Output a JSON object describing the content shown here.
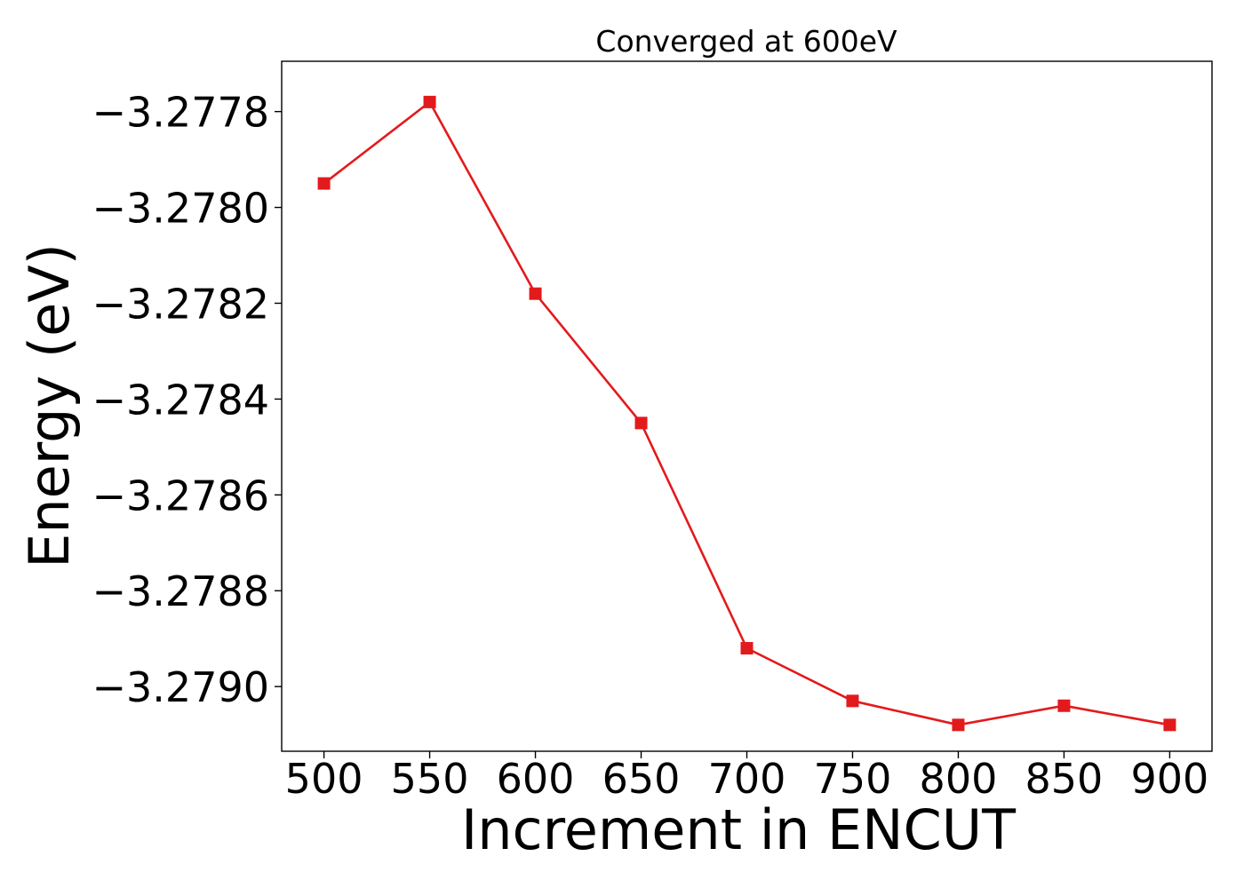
{
  "chart_data": {
    "type": "line",
    "title": "Converged at 600eV",
    "xlabel": "Increment in ENCUT",
    "ylabel": "Energy (eV)",
    "x": [
      500,
      550,
      600,
      650,
      700,
      750,
      800,
      850,
      900
    ],
    "series": [
      {
        "values": [
          -3.27795,
          -3.27778,
          -3.27818,
          -3.27845,
          -3.27892,
          -3.27903,
          -3.27908,
          -3.27904,
          -3.27908
        ],
        "color": "#e31a1c",
        "marker": "square"
      }
    ],
    "xlim": [
      480,
      920
    ],
    "ylim": [
      -3.279135,
      -3.277695
    ],
    "xticks": [
      500,
      550,
      600,
      650,
      700,
      750,
      800,
      850,
      900
    ],
    "xtick_labels": [
      "500",
      "550",
      "600",
      "650",
      "700",
      "750",
      "800",
      "850",
      "900"
    ],
    "yticks": [
      -3.2778,
      -3.278,
      -3.2782,
      -3.2784,
      -3.2786,
      -3.2788,
      -3.279
    ],
    "ytick_labels": [
      "−3.2778",
      "−3.2780",
      "−3.2782",
      "−3.2784",
      "−3.2786",
      "−3.2788",
      "−3.2790"
    ],
    "grid": false,
    "legend": "none"
  }
}
